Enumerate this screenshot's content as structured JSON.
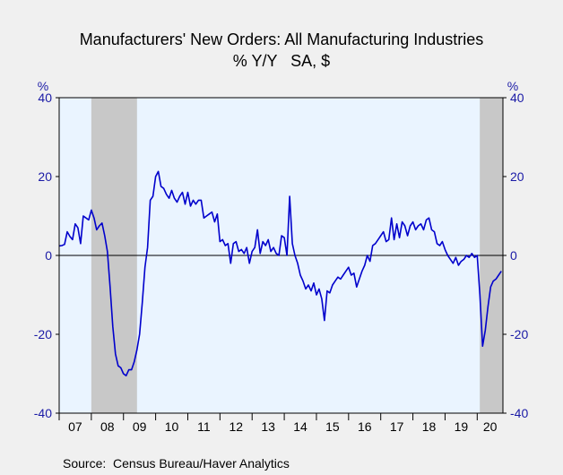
{
  "chart_data": {
    "type": "line",
    "title": "Manufacturers' New Orders: All Manufacturing Industries",
    "subtitle": "% Y/Y   SA, $",
    "y_unit_left": "%",
    "y_unit_right": "%",
    "ylim": [
      -40,
      40
    ],
    "y_ticks": [
      40,
      20,
      0,
      -20,
      -40
    ],
    "x_tick_labels": [
      "07",
      "08",
      "09",
      "10",
      "11",
      "12",
      "13",
      "14",
      "15",
      "16",
      "17",
      "18",
      "19",
      "20"
    ],
    "xlim": [
      2007.0,
      2020.8
    ],
    "recessions": [
      [
        2008.0,
        2009.42
      ],
      [
        2020.08,
        2020.8
      ]
    ],
    "source": "Source:  Census Bureau/Haver Analytics",
    "colors": {
      "line": "#0000cc",
      "axis_text": "#1a1aa6",
      "plot_bg": "#eaf4ff",
      "recession": "#c8c8c8"
    },
    "series": [
      {
        "values_start": 2007.0,
        "step_months": 1,
        "values": [
          2.4,
          2.5,
          2.8,
          6,
          4.8,
          4,
          8,
          7,
          3,
          10,
          9.5,
          9,
          11.5,
          9.5,
          6.5,
          7.5,
          8.2,
          5,
          1,
          -8,
          -18,
          -25,
          -28,
          -28.5,
          -30,
          -30.5,
          -29,
          -29,
          -27,
          -24,
          -20,
          -12,
          -3,
          2,
          14,
          15,
          20,
          21.3,
          17.5,
          17,
          15.5,
          14.5,
          16.5,
          14.5,
          13.5,
          15,
          16,
          13,
          16,
          12.5,
          14,
          13,
          14,
          14,
          9.5,
          10,
          10.5,
          11,
          8.5,
          10.5,
          3.5,
          4,
          2.5,
          3,
          -2,
          3,
          3.5,
          1,
          1.5,
          0.5,
          2,
          -2,
          1,
          2,
          6.5,
          0.5,
          3.5,
          2.5,
          4,
          1,
          2,
          0.5,
          0,
          5,
          4.5,
          0,
          15,
          3,
          0,
          -2,
          -5,
          -6.5,
          -8.5,
          -7.5,
          -9,
          -7,
          -10,
          -8.5,
          -11,
          -16.5,
          -9,
          -9.5,
          -7.5,
          -6.5,
          -5.5,
          -6,
          -5,
          -4,
          -3,
          -5,
          -4.5,
          -8,
          -6,
          -4,
          -2.5,
          0,
          -1.5,
          2.5,
          3,
          4,
          5,
          6,
          3.5,
          4,
          9.5,
          4,
          8,
          4.5,
          8.5,
          7.5,
          5,
          7.5,
          8.5,
          6.5,
          7.5,
          8,
          6.5,
          9,
          9.5,
          6.5,
          6,
          3,
          2.5,
          3.5,
          1.5,
          0,
          -1,
          -2,
          -0.5,
          -2.5,
          -1.5,
          -1,
          0,
          -0.5,
          0.5,
          -0.5,
          0,
          -10,
          -23,
          -19,
          -13,
          -8,
          -6.5,
          -6,
          -5,
          -4
        ]
      }
    ]
  }
}
